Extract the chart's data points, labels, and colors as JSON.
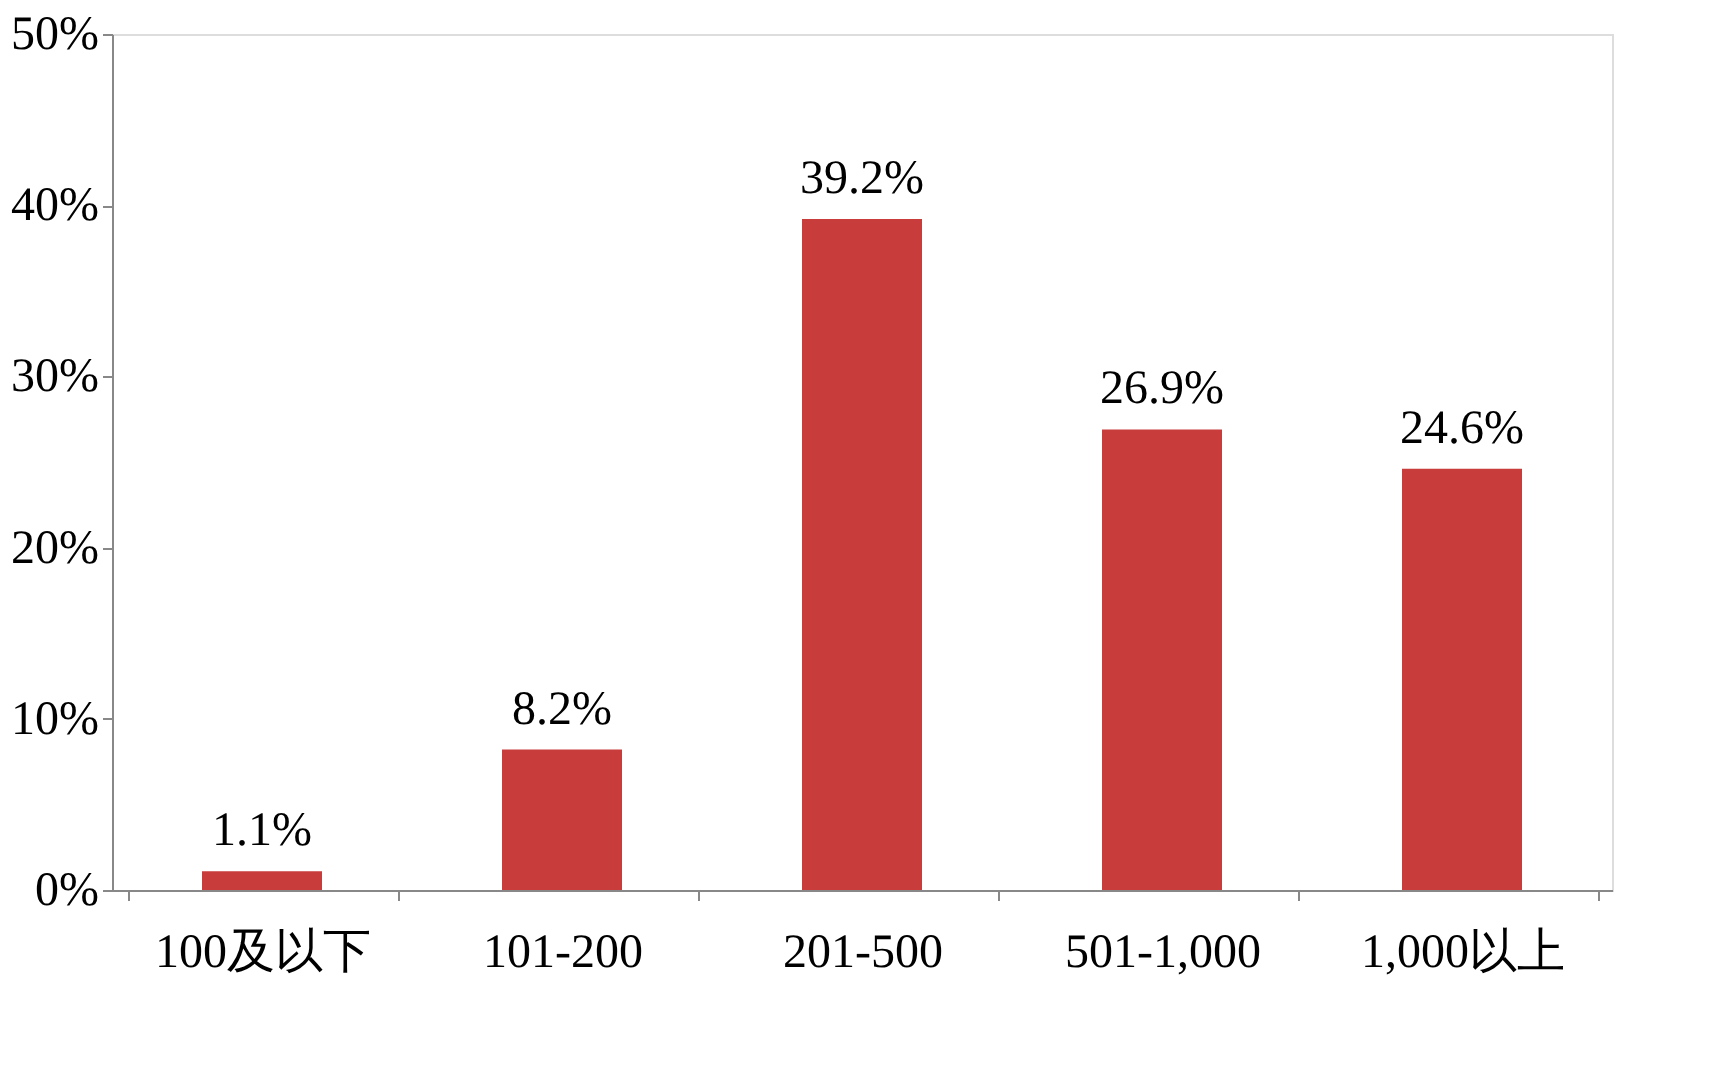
{
  "chart_data": {
    "type": "bar",
    "categories": [
      "100及以下",
      "101-200",
      "201-500",
      "501-1,000",
      "1,000以上"
    ],
    "values": [
      1.1,
      8.2,
      39.2,
      26.9,
      24.6
    ],
    "value_labels": [
      "1.1%",
      "8.2%",
      "39.2%",
      "26.9%",
      "24.6%"
    ],
    "color": "#c83c3c",
    "ylim": [
      0,
      50
    ],
    "yticks": [
      {
        "value": 0,
        "label": "0%"
      },
      {
        "value": 10,
        "label": "10%"
      },
      {
        "value": 20,
        "label": "20%"
      },
      {
        "value": 30,
        "label": "30%"
      },
      {
        "value": 40,
        "label": "40%"
      },
      {
        "value": 50,
        "label": "50%"
      }
    ],
    "grid": false
  }
}
